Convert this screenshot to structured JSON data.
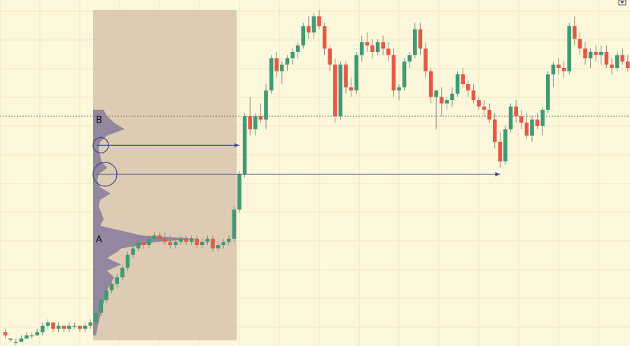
{
  "chart_data": {
    "type": "candlestick",
    "title": "",
    "xlabel": "",
    "ylabel": "",
    "ylim": [
      0,
      100
    ],
    "grid": true,
    "colors": {
      "background": "#fdf7dc",
      "grid": "#efe5c2",
      "up": "#3f9b73",
      "down": "#e55a47",
      "wick": "#8a8a8a",
      "profile_region": "#d8c3ac",
      "profile": "#8a7f9c",
      "reference_line": "#8d6b54",
      "arrow": "#3b4f8c"
    },
    "candles": [
      [
        1,
        3,
        4,
        1,
        2
      ],
      [
        2,
        1,
        1,
        0,
        1
      ],
      [
        3,
        0,
        1,
        -1,
        0
      ],
      [
        4,
        0,
        2,
        0,
        1
      ],
      [
        5,
        1,
        3,
        1,
        2
      ],
      [
        6,
        2,
        3,
        1,
        2
      ],
      [
        7,
        2,
        4,
        2,
        3
      ],
      [
        8,
        3,
        6,
        2,
        5
      ],
      [
        9,
        5,
        7,
        4,
        6
      ],
      [
        10,
        6,
        6,
        3,
        4
      ],
      [
        11,
        4,
        6,
        3,
        5
      ],
      [
        12,
        5,
        5,
        3,
        4
      ],
      [
        13,
        4,
        6,
        3,
        5
      ],
      [
        14,
        5,
        6,
        4,
        5
      ],
      [
        15,
        5,
        5,
        3,
        4
      ],
      [
        16,
        4,
        6,
        3,
        5
      ],
      [
        17,
        5,
        7,
        4,
        6
      ],
      [
        18,
        6,
        10,
        5,
        9
      ],
      [
        19,
        9,
        14,
        8,
        13
      ],
      [
        20,
        13,
        17,
        12,
        16
      ],
      [
        21,
        16,
        19,
        15,
        18
      ],
      [
        22,
        18,
        21,
        17,
        20
      ],
      [
        23,
        20,
        24,
        19,
        23
      ],
      [
        24,
        23,
        28,
        22,
        27
      ],
      [
        25,
        27,
        31,
        26,
        29
      ],
      [
        26,
        29,
        33,
        28,
        31
      ],
      [
        27,
        31,
        33,
        29,
        30
      ],
      [
        28,
        30,
        33,
        29,
        32
      ],
      [
        29,
        32,
        34,
        31,
        33
      ],
      [
        30,
        33,
        34,
        31,
        32
      ],
      [
        31,
        32,
        34,
        30,
        31
      ],
      [
        32,
        31,
        33,
        29,
        30
      ],
      [
        33,
        30,
        32,
        29,
        31
      ],
      [
        34,
        31,
        33,
        30,
        32
      ],
      [
        35,
        32,
        33,
        30,
        31
      ],
      [
        36,
        31,
        33,
        30,
        32
      ],
      [
        37,
        32,
        33,
        29,
        30
      ],
      [
        38,
        30,
        32,
        29,
        31
      ],
      [
        39,
        31,
        33,
        30,
        32
      ],
      [
        40,
        32,
        33,
        28,
        29
      ],
      [
        41,
        29,
        31,
        28,
        30
      ],
      [
        42,
        30,
        32,
        29,
        31
      ],
      [
        43,
        31,
        33,
        30,
        32
      ],
      [
        44,
        32,
        42,
        31,
        41
      ],
      [
        45,
        41,
        53,
        40,
        52
      ],
      [
        46,
        52,
        71,
        51,
        70
      ],
      [
        47,
        70,
        76,
        64,
        66
      ],
      [
        48,
        66,
        71,
        64,
        70
      ],
      [
        49,
        70,
        74,
        68,
        69
      ],
      [
        50,
        69,
        80,
        66,
        78
      ],
      [
        51,
        78,
        89,
        77,
        88
      ],
      [
        52,
        88,
        90,
        82,
        84
      ],
      [
        53,
        84,
        87,
        80,
        86
      ],
      [
        54,
        86,
        89,
        84,
        88
      ],
      [
        55,
        88,
        91,
        86,
        90
      ],
      [
        56,
        90,
        93,
        88,
        92
      ],
      [
        57,
        92,
        99,
        91,
        98
      ],
      [
        58,
        98,
        101,
        94,
        96
      ],
      [
        59,
        96,
        102,
        94,
        101
      ],
      [
        60,
        101,
        103,
        97,
        98
      ],
      [
        61,
        98,
        99,
        89,
        91
      ],
      [
        62,
        91,
        92,
        84,
        86
      ],
      [
        63,
        86,
        88,
        68,
        70
      ],
      [
        64,
        70,
        87,
        69,
        86
      ],
      [
        65,
        86,
        87,
        77,
        79
      ],
      [
        66,
        79,
        82,
        76,
        78
      ],
      [
        67,
        78,
        90,
        77,
        89
      ],
      [
        68,
        89,
        95,
        87,
        93
      ],
      [
        69,
        93,
        96,
        90,
        92
      ],
      [
        70,
        92,
        94,
        88,
        90
      ],
      [
        71,
        90,
        94,
        89,
        93
      ],
      [
        72,
        93,
        95,
        89,
        91
      ],
      [
        73,
        91,
        93,
        87,
        89
      ],
      [
        74,
        89,
        91,
        76,
        78
      ],
      [
        75,
        78,
        80,
        75,
        79
      ],
      [
        76,
        79,
        88,
        78,
        87
      ],
      [
        77,
        87,
        90,
        85,
        89
      ],
      [
        78,
        89,
        99,
        88,
        97
      ],
      [
        79,
        97,
        99,
        89,
        91
      ],
      [
        80,
        91,
        93,
        82,
        84
      ],
      [
        81,
        84,
        85,
        74,
        76
      ],
      [
        82,
        76,
        78,
        66,
        78
      ],
      [
        83,
        76,
        79,
        70,
        74
      ],
      [
        84,
        74,
        76,
        72,
        75
      ],
      [
        85,
        75,
        79,
        73,
        77
      ],
      [
        86,
        77,
        84,
        76,
        83
      ],
      [
        87,
        83,
        85,
        79,
        80
      ],
      [
        88,
        80,
        81,
        76,
        78
      ],
      [
        89,
        78,
        80,
        74,
        75
      ],
      [
        90,
        75,
        76,
        72,
        73
      ],
      [
        91,
        73,
        75,
        70,
        72
      ],
      [
        92,
        72,
        74,
        68,
        69
      ],
      [
        93,
        69,
        71,
        60,
        62
      ],
      [
        94,
        62,
        65,
        54,
        56
      ],
      [
        95,
        56,
        67,
        55,
        66
      ],
      [
        96,
        66,
        74,
        65,
        73
      ],
      [
        97,
        73,
        75,
        68,
        70
      ],
      [
        98,
        70,
        72,
        66,
        68
      ],
      [
        99,
        68,
        71,
        63,
        64
      ],
      [
        100,
        64,
        70,
        62,
        69
      ],
      [
        101,
        69,
        71,
        66,
        67
      ],
      [
        102,
        67,
        73,
        64,
        72
      ],
      [
        103,
        72,
        84,
        71,
        83
      ],
      [
        104,
        83,
        87,
        79,
        86
      ],
      [
        105,
        86,
        88,
        83,
        85
      ],
      [
        106,
        85,
        87,
        82,
        84
      ],
      [
        107,
        84,
        99,
        83,
        98
      ],
      [
        108,
        98,
        101,
        92,
        94
      ],
      [
        109,
        94,
        96,
        89,
        91
      ],
      [
        110,
        91,
        93,
        86,
        88
      ],
      [
        111,
        88,
        91,
        85,
        90
      ],
      [
        112,
        90,
        92,
        87,
        89
      ],
      [
        113,
        89,
        92,
        86,
        90
      ],
      [
        114,
        90,
        92,
        85,
        86
      ],
      [
        115,
        86,
        88,
        83,
        85
      ],
      [
        116,
        85,
        90,
        84,
        89
      ],
      [
        117,
        89,
        91,
        86,
        87
      ],
      [
        118,
        87,
        89,
        84,
        85
      ]
    ],
    "volume_profile": [
      [
        72,
        15
      ],
      [
        70,
        20
      ],
      [
        68,
        30
      ],
      [
        66,
        45
      ],
      [
        64,
        20
      ],
      [
        62,
        10
      ],
      [
        60,
        8
      ],
      [
        58,
        10
      ],
      [
        56,
        12
      ],
      [
        54,
        20
      ],
      [
        52,
        8
      ],
      [
        50,
        6
      ],
      [
        48,
        10
      ],
      [
        46,
        25
      ],
      [
        44,
        10
      ],
      [
        42,
        8
      ],
      [
        40,
        12
      ],
      [
        38,
        15
      ],
      [
        36,
        10
      ],
      [
        34,
        50
      ],
      [
        33,
        70
      ],
      [
        32,
        150
      ],
      [
        31,
        90
      ],
      [
        30,
        70
      ],
      [
        29,
        40
      ],
      [
        28,
        35
      ],
      [
        26,
        20
      ],
      [
        24,
        40
      ],
      [
        22,
        20
      ],
      [
        20,
        30
      ],
      [
        18,
        25
      ],
      [
        16,
        20
      ],
      [
        14,
        18
      ],
      [
        12,
        15
      ],
      [
        10,
        12
      ],
      [
        8,
        10
      ],
      [
        6,
        8
      ],
      [
        4,
        6
      ],
      [
        2,
        4
      ]
    ],
    "profile_range": {
      "start": 17.5,
      "end": 44.5
    },
    "reference_line": 70,
    "annotations": [
      {
        "label": "B",
        "price": 69
      },
      {
        "label": "A",
        "price": 32
      }
    ],
    "circles": [
      {
        "price": 61
      },
      {
        "price": 52
      }
    ],
    "arrows": [
      {
        "from_x": 17.5,
        "to_x": 45,
        "price": 61
      },
      {
        "from_x": 17.5,
        "to_x": 94,
        "price": 52
      }
    ]
  }
}
